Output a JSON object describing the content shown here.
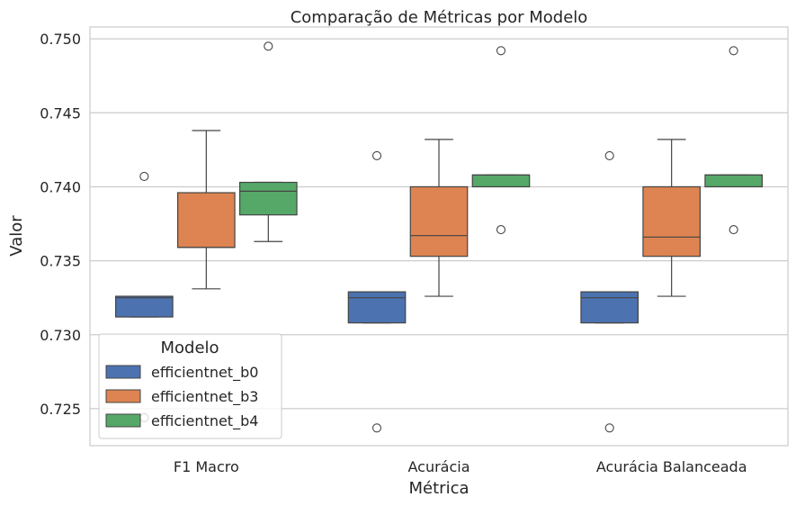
{
  "chart_data": {
    "type": "box",
    "title": "Comparação de Métricas por Modelo",
    "xlabel": "Métrica",
    "ylabel": "Valor",
    "categories": [
      "F1 Macro",
      "Acurácia",
      "Acurácia Balanceada"
    ],
    "ylim": [
      0.7225,
      0.7508
    ],
    "yticks": [
      0.725,
      0.73,
      0.735,
      0.74,
      0.745,
      0.75
    ],
    "ytick_labels": [
      "0.725",
      "0.730",
      "0.735",
      "0.740",
      "0.745",
      "0.750"
    ],
    "grid": true,
    "legend": {
      "title": "Modelo",
      "placement": "lower-left"
    },
    "series": [
      {
        "name": "efficientnet_b0",
        "color": "#4c72b0",
        "boxes": [
          {
            "whisker_low": 0.7312,
            "q1": 0.7312,
            "median": 0.7325,
            "q3": 0.7326,
            "whisker_high": 0.7326,
            "outliers": [
              0.7407,
              0.7244
            ]
          },
          {
            "whisker_low": 0.7308,
            "q1": 0.7308,
            "median": 0.7325,
            "q3": 0.7329,
            "whisker_high": 0.7329,
            "outliers": [
              0.7421,
              0.7237
            ]
          },
          {
            "whisker_low": 0.7308,
            "q1": 0.7308,
            "median": 0.7325,
            "q3": 0.7329,
            "whisker_high": 0.7329,
            "outliers": [
              0.7421,
              0.7237
            ]
          }
        ]
      },
      {
        "name": "efficientnet_b3",
        "color": "#dd8452",
        "boxes": [
          {
            "whisker_low": 0.7331,
            "q1": 0.7359,
            "median": 0.7359,
            "q3": 0.7396,
            "whisker_high": 0.7438,
            "outliers": []
          },
          {
            "whisker_low": 0.7326,
            "q1": 0.7353,
            "median": 0.7367,
            "q3": 0.74,
            "whisker_high": 0.7432,
            "outliers": []
          },
          {
            "whisker_low": 0.7326,
            "q1": 0.7353,
            "median": 0.7366,
            "q3": 0.74,
            "whisker_high": 0.7432,
            "outliers": []
          }
        ]
      },
      {
        "name": "efficientnet_b4",
        "color": "#55a868",
        "boxes": [
          {
            "whisker_low": 0.7363,
            "q1": 0.7381,
            "median": 0.7397,
            "q3": 0.7403,
            "whisker_high": 0.7403,
            "outliers": [
              0.7495
            ]
          },
          {
            "whisker_low": 0.74,
            "q1": 0.74,
            "median": 0.7408,
            "q3": 0.7408,
            "whisker_high": 0.7408,
            "outliers": [
              0.7492,
              0.7371
            ]
          },
          {
            "whisker_low": 0.74,
            "q1": 0.74,
            "median": 0.7408,
            "q3": 0.7408,
            "whisker_high": 0.7408,
            "outliers": [
              0.7492,
              0.7371
            ]
          }
        ]
      }
    ]
  }
}
